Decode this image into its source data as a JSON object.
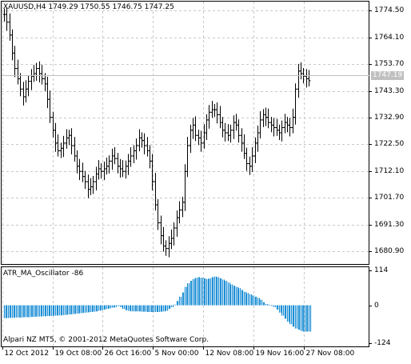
{
  "main_chart": {
    "symbol_line": "XAUUSD,H4  1749.29 1750.55 1746.75 1747.25",
    "current_price": "1747.19",
    "price_ticks": [
      "1774.50",
      "1764.10",
      "1753.70",
      "1743.30",
      "1732.90",
      "1722.50",
      "1712.10",
      "1701.70",
      "1691.30",
      "1680.90"
    ],
    "colors": {
      "bars": "#000000",
      "grid": "#c8c8c8",
      "current_line": "#c0c0c0"
    }
  },
  "indicator": {
    "label": "ATR_MA_Oscillator -86",
    "ticks": [
      "114",
      "0",
      "-124"
    ],
    "colors": {
      "histogram": "#1e8fd5"
    }
  },
  "watermark": "Alpari NZ MT5, © 2001-2012 MetaQuotes Software Corp.",
  "date_ticks": [
    "12 Oct 2012",
    "19 Oct 08:00",
    "26 Oct 16:00",
    "5 Nov 00:00",
    "12 Nov 08:00",
    "19 Nov 16:00",
    "27 Nov 08:00"
  ],
  "chart_data": [
    {
      "type": "ohlc",
      "title": "XAUUSD,H4",
      "ylim": [
        1676,
        1778
      ],
      "series": [
        {
          "name": "XAUUSD",
          "close": [
            1773,
            1770,
            1765,
            1758,
            1752,
            1748,
            1744,
            1741,
            1744,
            1747,
            1749,
            1750,
            1752,
            1750,
            1748,
            1746,
            1740,
            1733,
            1728,
            1723,
            1720,
            1721,
            1723,
            1725,
            1726,
            1722,
            1718,
            1714,
            1712,
            1710,
            1708,
            1705,
            1706,
            1708,
            1711,
            1713,
            1712,
            1713,
            1714,
            1716,
            1718,
            1717,
            1714,
            1713,
            1712,
            1714,
            1716,
            1718,
            1720,
            1722,
            1725,
            1724,
            1722,
            1720,
            1716,
            1708,
            1699,
            1692,
            1687,
            1683,
            1682,
            1684,
            1686,
            1690,
            1694,
            1697,
            1700,
            1712,
            1722,
            1728,
            1730,
            1726,
            1725,
            1723,
            1727,
            1732,
            1735,
            1736,
            1736,
            1734,
            1731,
            1728,
            1727,
            1726,
            1728,
            1731,
            1730,
            1726,
            1723,
            1719,
            1715,
            1714,
            1718,
            1723,
            1727,
            1732,
            1734,
            1733,
            1731,
            1730,
            1729,
            1728,
            1727,
            1729,
            1731,
            1730,
            1729,
            1733,
            1744,
            1751,
            1750,
            1749,
            1748,
            1747.25
          ]
        }
      ]
    },
    {
      "type": "bar",
      "title": "ATR_MA_Oscillator -86",
      "ylim": [
        -124,
        114
      ],
      "series": [
        {
          "name": "ATR_MA_Oscillator",
          "values": [
            -42,
            -42,
            -41,
            -41,
            -40,
            -40,
            -40,
            -39,
            -39,
            -39,
            -38,
            -38,
            -37,
            -37,
            -36,
            -36,
            -35,
            -35,
            -34,
            -34,
            -33,
            -33,
            -32,
            -31,
            -30,
            -29,
            -28,
            -27,
            -26,
            -25,
            -24,
            -23,
            -22,
            -21,
            -20,
            -18,
            -16,
            -14,
            -12,
            -10,
            -8,
            -6,
            -2,
            -6,
            -12,
            -16,
            -18,
            -20,
            -20,
            -20,
            -20,
            -21,
            -21,
            -22,
            -22,
            -22,
            -22,
            -22,
            -21,
            -20,
            -18,
            -12,
            -6,
            2,
            14,
            28,
            42,
            60,
            72,
            80,
            86,
            90,
            92,
            90,
            88,
            86,
            88,
            92,
            94,
            92,
            88,
            84,
            80,
            74,
            68,
            64,
            60,
            56,
            50,
            44,
            40,
            36,
            32,
            28,
            24,
            18,
            10,
            4,
            2,
            -2,
            -6,
            -14,
            -24,
            -34,
            -44,
            -54,
            -62,
            -70,
            -76,
            -80,
            -84,
            -86,
            -86,
            -86
          ]
        }
      ]
    }
  ]
}
